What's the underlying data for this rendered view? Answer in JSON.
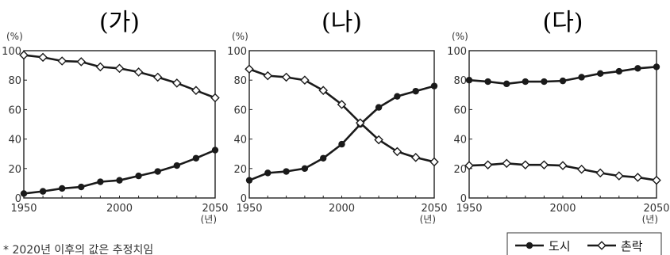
{
  "chart_data": [
    {
      "type": "line",
      "title": "(가)",
      "y_unit": "(%)",
      "x_unit": "(년)",
      "xlim": [
        1950,
        2050
      ],
      "ylim": [
        0,
        100
      ],
      "x_ticks": [
        1950,
        2000,
        2050
      ],
      "y_ticks": [
        0,
        20,
        40,
        60,
        80,
        100
      ],
      "x": [
        1950,
        1960,
        1970,
        1980,
        1990,
        2000,
        2010,
        2020,
        2030,
        2040,
        2050
      ],
      "series": [
        {
          "name": "도시",
          "marker": "filled-circle",
          "values": [
            3,
            4.5,
            6.5,
            7.5,
            11,
            12,
            15,
            18,
            22,
            27,
            32.5
          ]
        },
        {
          "name": "촌락",
          "marker": "open-diamond",
          "values": [
            97,
            95.5,
            93,
            92.5,
            89,
            88,
            85.5,
            82,
            78,
            73,
            68
          ]
        }
      ]
    },
    {
      "type": "line",
      "title": "(나)",
      "y_unit": "(%)",
      "x_unit": "(년)",
      "xlim": [
        1950,
        2050
      ],
      "ylim": [
        0,
        100
      ],
      "x_ticks": [
        1950,
        2000,
        2050
      ],
      "y_ticks": [
        0,
        20,
        40,
        60,
        80,
        100
      ],
      "x": [
        1950,
        1960,
        1970,
        1980,
        1990,
        2000,
        2010,
        2020,
        2030,
        2040,
        2050
      ],
      "series": [
        {
          "name": "도시",
          "marker": "filled-circle",
          "values": [
            12,
            17,
            18,
            20,
            27,
            36.5,
            50,
            61.5,
            69,
            72.5,
            76
          ]
        },
        {
          "name": "촌락",
          "marker": "open-diamond",
          "values": [
            87.5,
            83,
            82,
            80,
            73,
            63.5,
            51,
            39.5,
            31.5,
            27.5,
            24.5
          ]
        }
      ]
    },
    {
      "type": "line",
      "title": "(다)",
      "y_unit": "(%)",
      "x_unit": "(년)",
      "xlim": [
        1950,
        2050
      ],
      "ylim": [
        0,
        100
      ],
      "x_ticks": [
        1950,
        2000,
        2050
      ],
      "y_ticks": [
        0,
        20,
        40,
        60,
        80,
        100
      ],
      "x": [
        1950,
        1960,
        1970,
        1980,
        1990,
        2000,
        2010,
        2020,
        2030,
        2040,
        2050
      ],
      "series": [
        {
          "name": "도시",
          "marker": "filled-circle",
          "values": [
            80,
            79,
            77.5,
            79,
            79,
            79.5,
            82,
            84.5,
            86,
            88,
            89
          ]
        },
        {
          "name": "촌락",
          "marker": "open-diamond",
          "values": [
            22,
            22.5,
            23.5,
            22.5,
            22.5,
            22,
            19.5,
            17,
            15,
            14,
            12
          ]
        }
      ]
    }
  ],
  "legend": {
    "items": [
      {
        "label": "도시",
        "marker": "filled-circle"
      },
      {
        "label": "촌락",
        "marker": "open-diamond"
      }
    ]
  },
  "footnote": "* 2020년 이후의 값은 추정치임"
}
